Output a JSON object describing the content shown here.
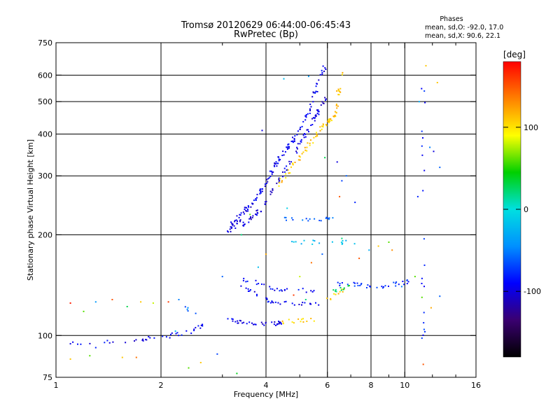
{
  "chart_data": {
    "type": "scatter",
    "title": "Tromsø 20120629 06:44:00-06:45:43",
    "subtitle": "RwPretec (Bp)",
    "xlabel": "Frequency [MHz]",
    "ylabel": "Stationary phase Virtual Height [km]",
    "x_scale": "log",
    "y_scale": "log",
    "xlim": [
      1,
      16
    ],
    "ylim": [
      75,
      750
    ],
    "x_ticks": [
      1,
      2,
      4,
      6,
      8,
      10,
      16
    ],
    "x_tick_labels": [
      "1",
      "2",
      "4",
      "6",
      "8",
      "10",
      "16"
    ],
    "x_minor_ticks": [
      3,
      5,
      7,
      9,
      12,
      14
    ],
    "y_ticks": [
      75,
      100,
      200,
      300,
      400,
      500,
      600,
      750
    ],
    "y_tick_labels": [
      "75",
      "100",
      "200",
      "300",
      "400",
      "500",
      "600",
      "750"
    ],
    "grid_x": [
      2,
      4,
      6,
      8,
      10
    ],
    "grid_y": [
      100,
      200,
      300,
      400,
      500,
      600
    ],
    "phase_stats": {
      "heading": "Phases",
      "o_line": "mean, sd,O: -92.0, 17.0",
      "x_line": "mean, sd,X:  90.6, 22.1"
    },
    "colorbar": {
      "unit": "[deg]",
      "range": [
        -180,
        180
      ],
      "ticks": [
        100,
        0,
        -100
      ],
      "tick_labels": [
        "100",
        "0",
        "-100"
      ],
      "colors": [
        "#000000",
        "#3a0070",
        "#0000ff",
        "#0090ff",
        "#00e0e0",
        "#00d000",
        "#ffff00",
        "#ff8000",
        "#ff0000"
      ]
    },
    "series": [
      {
        "segments": [
          [
            1.05,
            95,
            1.6,
            96
          ],
          [
            1.6,
            96,
            2.0,
            99
          ],
          [
            2.0,
            99,
            2.4,
            102
          ],
          [
            2.4,
            102,
            2.75,
            110
          ]
        ],
        "phase": -95,
        "n": 40
      },
      {
        "segments": [
          [
            2.35,
            121,
            2.55,
            116
          ]
        ],
        "phase": -60,
        "n": 5
      },
      {
        "segments": [
          [
            3.1,
            112,
            3.5,
            109
          ],
          [
            3.5,
            109,
            4.2,
            108
          ],
          [
            4.2,
            108,
            4.4,
            109
          ]
        ],
        "phase": -100,
        "n": 36
      },
      {
        "segments": [
          [
            4.4,
            110,
            5.5,
            111
          ]
        ],
        "phase": 110,
        "n": 14
      },
      {
        "segments": [
          [
            3.4,
            140,
            4.2,
            125
          ],
          [
            4.2,
            125,
            5.9,
            125
          ]
        ],
        "phase": -95,
        "n": 34
      },
      {
        "segments": [
          [
            5.8,
            126,
            6.8,
            138
          ]
        ],
        "phase": 105,
        "n": 10
      },
      {
        "segments": [
          [
            3.3,
            150,
            4.2,
            138
          ],
          [
            4.2,
            138,
            5.5,
            136
          ]
        ],
        "phase": -90,
        "n": 26
      },
      {
        "segments": [
          [
            3.2,
            215,
            3.8,
            260
          ],
          [
            3.8,
            260,
            4.3,
            330
          ],
          [
            4.3,
            330,
            5.1,
            420
          ],
          [
            5.1,
            420,
            5.9,
            640
          ]
        ],
        "phase": -95,
        "n": 130
      },
      {
        "segments": [
          [
            3.4,
            210,
            3.9,
            240
          ],
          [
            3.9,
            240,
            4.6,
            320
          ],
          [
            4.6,
            320,
            5.4,
            430
          ],
          [
            5.4,
            430,
            6.0,
            520
          ]
        ],
        "phase": -100,
        "n": 90
      },
      {
        "segments": [
          [
            4.3,
            280,
            5.1,
            350
          ],
          [
            5.1,
            350,
            5.8,
            420
          ],
          [
            5.8,
            420,
            6.3,
            450
          ],
          [
            6.3,
            450,
            6.6,
            620
          ]
        ],
        "phase": 110,
        "n": 80
      },
      {
        "segments": [
          [
            3.1,
            205,
            3.4,
            220
          ]
        ],
        "phase": -100,
        "n": 16
      },
      {
        "segments": [
          [
            4.3,
            222,
            6.3,
            222
          ]
        ],
        "phase": -60,
        "n": 18
      },
      {
        "segments": [
          [
            4.5,
            190,
            7.4,
            190
          ]
        ],
        "phase": -20,
        "n": 16
      },
      {
        "segments": [
          [
            6.4,
            143,
            8.4,
            140
          ],
          [
            8.4,
            140,
            10.5,
            145
          ]
        ],
        "phase": -80,
        "n": 34
      },
      {
        "segments": [
          [
            6.1,
            135,
            7.0,
            140
          ]
        ],
        "phase": 30,
        "n": 10
      },
      {
        "segments": [
          [
            11.3,
            620,
            11.3,
            95
          ]
        ],
        "phase": -80,
        "n": 20
      }
    ],
    "scatter_points": [
      [
        1.1,
        125,
        170
      ],
      [
        1.2,
        118,
        60
      ],
      [
        1.3,
        126,
        -40
      ],
      [
        1.45,
        128,
        150
      ],
      [
        1.6,
        122,
        30
      ],
      [
        1.75,
        126,
        110
      ],
      [
        1.9,
        125,
        80
      ],
      [
        2.1,
        126,
        160
      ],
      [
        2.25,
        128,
        -50
      ],
      [
        1.1,
        85,
        110
      ],
      [
        1.25,
        87,
        60
      ],
      [
        1.55,
        86,
        110
      ],
      [
        1.7,
        86,
        140
      ],
      [
        2.6,
        83,
        110
      ],
      [
        3.4,
        200,
        20
      ],
      [
        3.6,
        230,
        60
      ],
      [
        3.8,
        160,
        -20
      ],
      [
        4.0,
        175,
        120
      ],
      [
        4.6,
        240,
        -10
      ],
      [
        5.0,
        150,
        80
      ],
      [
        5.4,
        165,
        140
      ],
      [
        5.8,
        175,
        -60
      ],
      [
        6.6,
        195,
        20
      ],
      [
        7.4,
        170,
        150
      ],
      [
        7.9,
        180,
        -30
      ],
      [
        8.4,
        185,
        110
      ],
      [
        9.0,
        190,
        60
      ],
      [
        9.2,
        180,
        130
      ],
      [
        5.2,
        128,
        20
      ],
      [
        4.8,
        132,
        160
      ],
      [
        6.4,
        330,
        -100
      ],
      [
        6.6,
        290,
        -70
      ],
      [
        6.5,
        260,
        150
      ],
      [
        5.3,
        595,
        -40
      ],
      [
        4.5,
        585,
        -20
      ],
      [
        3.9,
        410,
        -100
      ],
      [
        5.9,
        340,
        30
      ],
      [
        6.8,
        300,
        -60
      ],
      [
        7.2,
        250,
        -80
      ],
      [
        11.8,
        365,
        -50
      ],
      [
        12.1,
        355,
        -100
      ],
      [
        11.5,
        640,
        110
      ],
      [
        11.0,
        500,
        -30
      ],
      [
        11.2,
        130,
        60
      ],
      [
        12.6,
        318,
        -60
      ],
      [
        12.6,
        131,
        -60
      ],
      [
        11.9,
        121,
        120
      ],
      [
        11.3,
        82,
        150
      ],
      [
        12.4,
        570,
        110
      ],
      [
        10.9,
        260,
        -80
      ],
      [
        10.7,
        150,
        60
      ],
      [
        9.8,
        140,
        -50
      ],
      [
        2.2,
        103,
        -20
      ],
      [
        2.9,
        88,
        -70
      ],
      [
        2.4,
        80,
        60
      ],
      [
        3.3,
        77,
        40
      ],
      [
        1.3,
        92,
        -80
      ],
      [
        3.0,
        150,
        -60
      ]
    ]
  }
}
